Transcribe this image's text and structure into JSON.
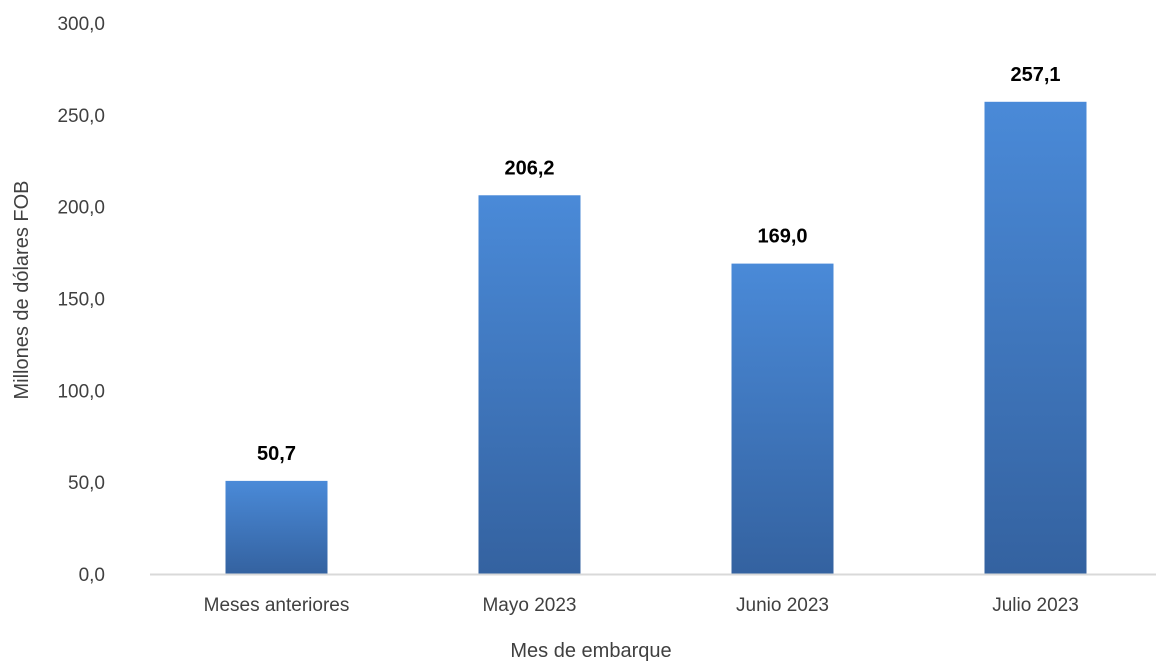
{
  "chart_data": {
    "type": "bar",
    "categories": [
      "Meses anteriores",
      "Mayo 2023",
      "Junio 2023",
      "Julio 2023"
    ],
    "values": [
      50.7,
      206.2,
      169.0,
      257.1
    ],
    "value_labels": [
      "50,7",
      "206,2",
      "169,0",
      "257,1"
    ],
    "title": "",
    "xlabel": "Mes de embarque",
    "ylabel": "Millones de dólares FOB",
    "ylim": [
      0,
      300
    ],
    "yticks": [
      0,
      50,
      100,
      150,
      200,
      250,
      300
    ],
    "ytick_labels": [
      "0,0",
      "50,0",
      "100,0",
      "150,0",
      "200,0",
      "250,0",
      "300,0"
    ],
    "grid": false,
    "legend": "none",
    "colors": {
      "bar_top": "#4a8ad8",
      "bar_bottom": "#3462a0",
      "axis": "#d9d9d9"
    }
  }
}
